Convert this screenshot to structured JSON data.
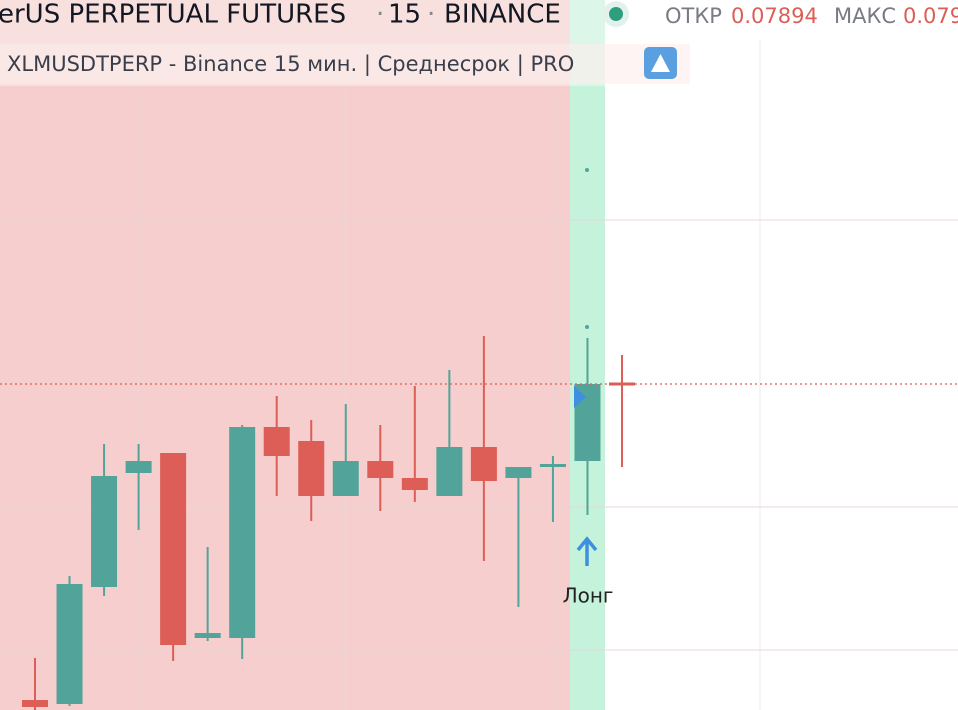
{
  "header": {
    "title": "erUS PERPETUAL FUTURES",
    "interval": "15",
    "exchange": "BINANCE",
    "open_label": "ОТКР",
    "open_value": "0.07894",
    "high_label": "МАКС",
    "high_value": "0.079",
    "subtitle": "XLMUSDTPERP - Binance 15 мин. | Среднесрок | PRO"
  },
  "chart_data": {
    "type": "candlestick",
    "ylim": [
      0.07763,
      0.08047
    ],
    "up_color": "#52a49a",
    "down_color": "#dd5e56",
    "candles": [
      {
        "open": 0.07767,
        "high": 0.077838,
        "low": 0.07763,
        "close": 0.077642
      },
      {
        "open": 0.077654,
        "high": 0.078166,
        "low": 0.077646,
        "close": 0.078134
      },
      {
        "open": 0.078122,
        "high": 0.078694,
        "low": 0.078086,
        "close": 0.078566
      },
      {
        "open": 0.078578,
        "high": 0.078694,
        "low": 0.07835,
        "close": 0.078626
      },
      {
        "open": 0.078658,
        "high": 0.078658,
        "low": 0.077826,
        "close": 0.07789
      },
      {
        "open": 0.077918,
        "high": 0.078282,
        "low": 0.077906,
        "close": 0.077938
      },
      {
        "open": 0.077918,
        "high": 0.07877,
        "low": 0.077834,
        "close": 0.078762
      },
      {
        "open": 0.078762,
        "high": 0.078886,
        "low": 0.078486,
        "close": 0.078646
      },
      {
        "open": 0.078706,
        "high": 0.07879,
        "low": 0.078386,
        "close": 0.078486
      },
      {
        "open": 0.078486,
        "high": 0.078854,
        "low": 0.078486,
        "close": 0.078626
      },
      {
        "open": 0.078626,
        "high": 0.07877,
        "low": 0.078426,
        "close": 0.078558
      },
      {
        "open": 0.078558,
        "high": 0.078926,
        "low": 0.078462,
        "close": 0.07851
      },
      {
        "open": 0.078486,
        "high": 0.07899,
        "low": 0.078486,
        "close": 0.078682
      },
      {
        "open": 0.078682,
        "high": 0.079126,
        "low": 0.078226,
        "close": 0.078546
      },
      {
        "open": 0.078558,
        "high": 0.078602,
        "low": 0.078042,
        "close": 0.078602
      },
      {
        "open": 0.078606,
        "high": 0.078646,
        "low": 0.078382,
        "close": 0.078614
      },
      {
        "open": 0.078626,
        "high": 0.079118,
        "low": 0.07841,
        "close": 0.078934
      },
      {
        "open": 0.07894,
        "high": 0.07905,
        "low": 0.078602,
        "close": 0.078934
      }
    ],
    "signal_label": "Лонг"
  }
}
